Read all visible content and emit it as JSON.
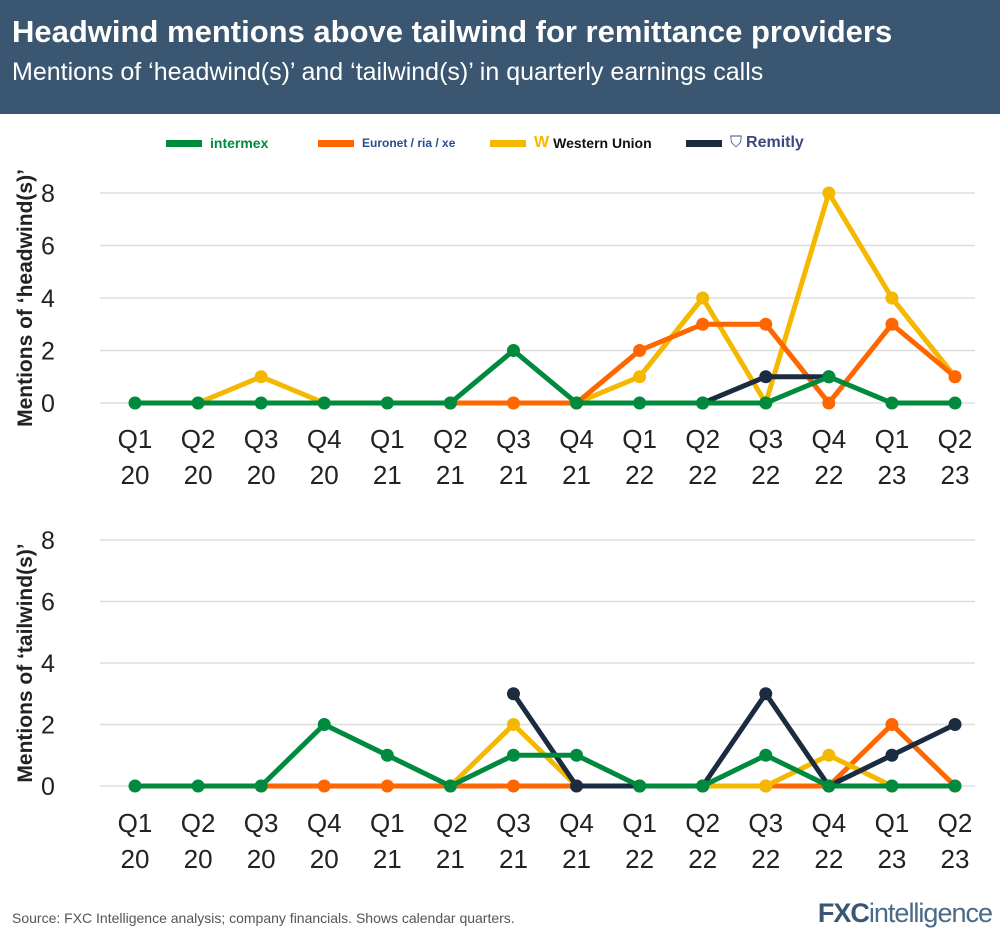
{
  "header": {
    "title": "Headwind mentions above tailwind for remittance providers",
    "subtitle": "Mentions of ‘headwind(s)’ and ‘tailwind(s)’ in quarterly earnings calls"
  },
  "legend": [
    {
      "name": "intermex",
      "color": "#008a3e"
    },
    {
      "name": "Euronet / ria / xe",
      "color": "#ff6600"
    },
    {
      "name": "Western Union",
      "color": "#f5b800"
    },
    {
      "name": "Remitly",
      "color": "#1b2b40"
    }
  ],
  "footer": {
    "source": "Source: FXC Intelligence analysis; company financials. Shows calendar quarters.",
    "logo_a": "FXC",
    "logo_b": "intelligence"
  },
  "chart_data": [
    {
      "type": "line",
      "ylabel": "Mentions of ‘headwind(s)’",
      "ylim": [
        0,
        8
      ],
      "yticks": [
        0,
        2,
        4,
        6,
        8
      ],
      "grid": true,
      "legend": "top",
      "categories": [
        "Q1 20",
        "Q2 20",
        "Q3 20",
        "Q4 20",
        "Q1 21",
        "Q2 21",
        "Q3 21",
        "Q4 21",
        "Q1 22",
        "Q2 22",
        "Q3 22",
        "Q4 22",
        "Q1 23",
        "Q2 23"
      ],
      "series": [
        {
          "name": "Western Union",
          "values": [
            null,
            0,
            1,
            0,
            0,
            0,
            0,
            0,
            1,
            4,
            0,
            8,
            4,
            1
          ]
        },
        {
          "name": "Euronet / ria / xe",
          "values": [
            null,
            null,
            null,
            null,
            null,
            0,
            0,
            0,
            2,
            3,
            3,
            0,
            3,
            1
          ]
        },
        {
          "name": "Remitly",
          "values": [
            null,
            null,
            null,
            null,
            null,
            null,
            null,
            null,
            null,
            0,
            1,
            1,
            null,
            null
          ]
        },
        {
          "name": "intermex",
          "values": [
            0,
            0,
            0,
            0,
            0,
            0,
            2,
            0,
            0,
            0,
            0,
            1,
            0,
            0
          ]
        }
      ]
    },
    {
      "type": "line",
      "ylabel": "Mentions of ‘tailwind(s)’",
      "ylim": [
        0,
        8
      ],
      "yticks": [
        0,
        2,
        4,
        6,
        8
      ],
      "grid": true,
      "categories": [
        "Q1 20",
        "Q2 20",
        "Q3 20",
        "Q4 20",
        "Q1 21",
        "Q2 21",
        "Q3 21",
        "Q4 21",
        "Q1 22",
        "Q2 22",
        "Q3 22",
        "Q4 22",
        "Q1 23",
        "Q2 23"
      ],
      "series": [
        {
          "name": "Euronet / ria / xe",
          "values": [
            null,
            null,
            0,
            0,
            0,
            0,
            0,
            0,
            0,
            0,
            0,
            0,
            2,
            0
          ]
        },
        {
          "name": "Western Union",
          "values": [
            null,
            null,
            null,
            null,
            null,
            0,
            2,
            0,
            0,
            0,
            0,
            1,
            0,
            null
          ]
        },
        {
          "name": "Remitly",
          "values": [
            null,
            null,
            null,
            null,
            null,
            null,
            3,
            0,
            0,
            0,
            3,
            0,
            1,
            2
          ]
        },
        {
          "name": "intermex",
          "values": [
            0,
            0,
            0,
            2,
            1,
            0,
            1,
            1,
            0,
            0,
            1,
            0,
            0,
            0
          ]
        }
      ]
    }
  ]
}
